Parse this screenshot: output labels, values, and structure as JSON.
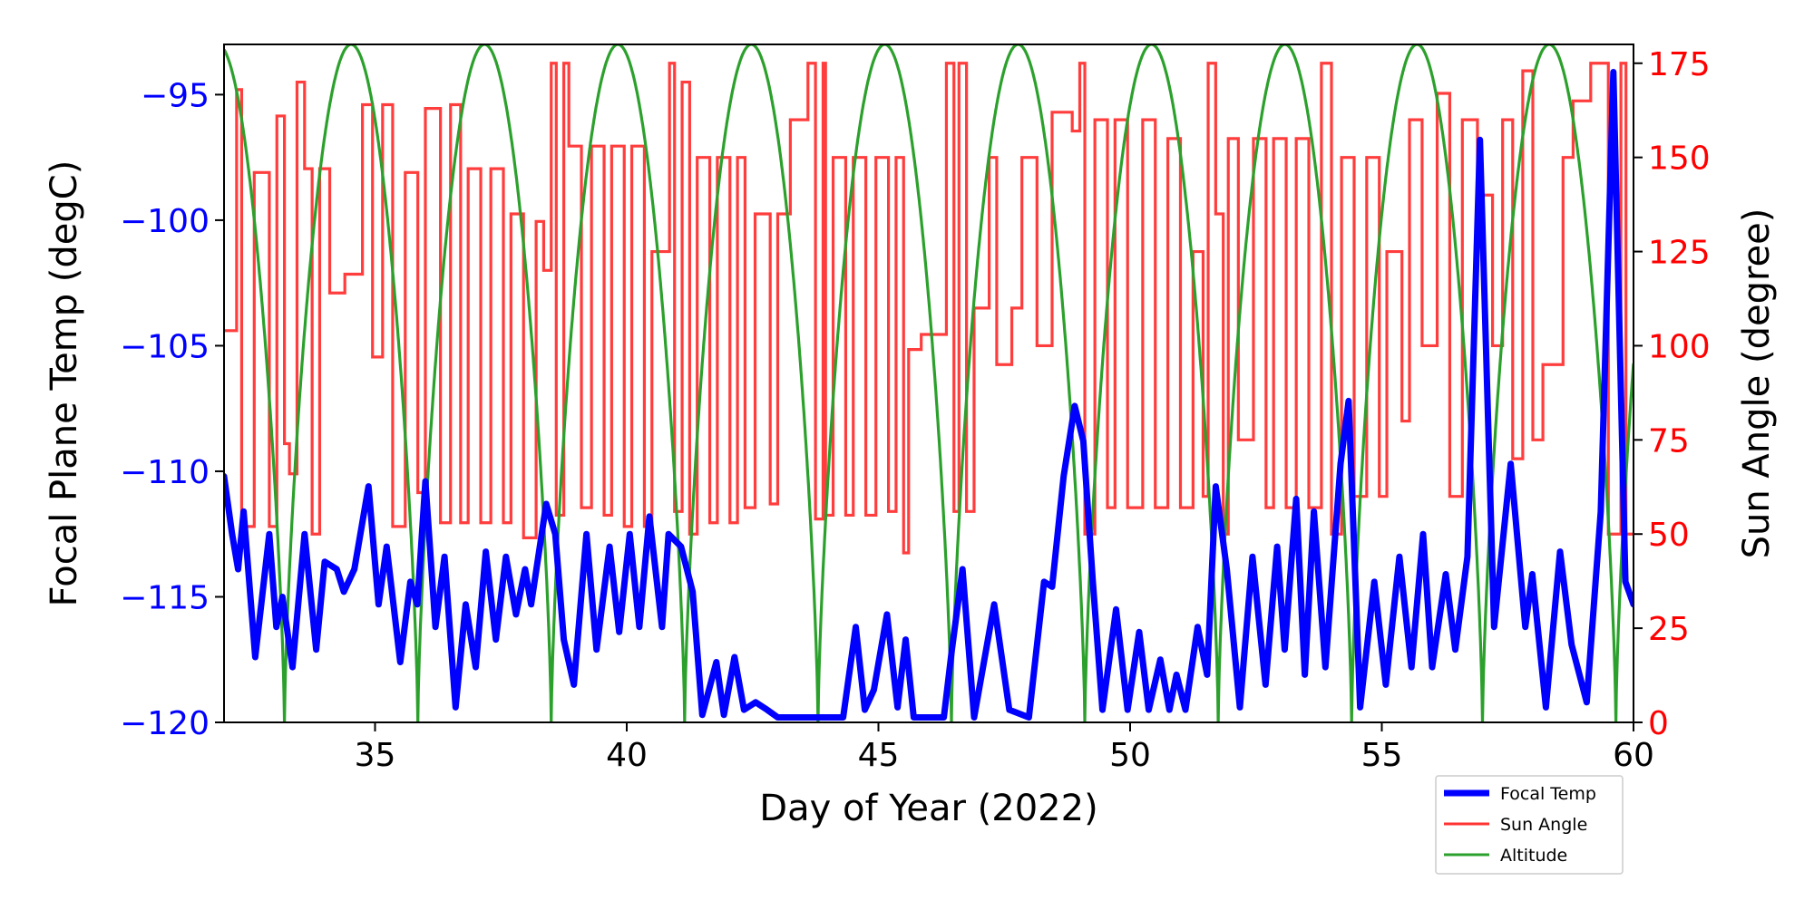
{
  "chart_data": {
    "type": "line",
    "xlabel": "Day of Year (2022)",
    "ylabel_left": "Focal Plane Temp (degC)",
    "ylabel_right": "Sun Angle (degree)",
    "xlim": [
      32,
      60
    ],
    "ylim_left": [
      -120,
      -93
    ],
    "ylim_right": [
      0,
      180
    ],
    "xticks": [
      35,
      40,
      45,
      50,
      55,
      60
    ],
    "yticks_left": [
      -95,
      -100,
      -105,
      -110,
      -115,
      -120
    ],
    "yticks_right": [
      175,
      150,
      125,
      100,
      75,
      50,
      25,
      0
    ],
    "legend_position": "below-right",
    "grid": false,
    "colors": {
      "focal": "#0000ff",
      "sun": "#ff3333",
      "altitude": "#2ca02c",
      "left_axis": "#0000ff",
      "right_axis": "#ff0000"
    },
    "legend": [
      "Focal Temp",
      "Sun Angle",
      "Altitude"
    ],
    "series": [
      {
        "name": "Focal Temp",
        "axis": "left",
        "points": [
          [
            32.0,
            -110.2
          ],
          [
            32.16,
            -112.5
          ],
          [
            32.28,
            -113.9
          ],
          [
            32.39,
            -111.6
          ],
          [
            32.62,
            -117.4
          ],
          [
            32.9,
            -112.5
          ],
          [
            33.04,
            -116.2
          ],
          [
            33.16,
            -115
          ],
          [
            33.36,
            -117.8
          ],
          [
            33.6,
            -112.5
          ],
          [
            33.83,
            -117.1
          ],
          [
            34.0,
            -113.6
          ],
          [
            34.24,
            -113.9
          ],
          [
            34.38,
            -114.8
          ],
          [
            34.59,
            -113.9
          ],
          [
            34.87,
            -110.6
          ],
          [
            35.07,
            -115.3
          ],
          [
            35.23,
            -113
          ],
          [
            35.5,
            -117.6
          ],
          [
            35.7,
            -114.4
          ],
          [
            35.84,
            -115.3
          ],
          [
            36.0,
            -110.4
          ],
          [
            36.2,
            -116.2
          ],
          [
            36.38,
            -113.4
          ],
          [
            36.6,
            -119.4
          ],
          [
            36.8,
            -115.3
          ],
          [
            37.0,
            -117.8
          ],
          [
            37.2,
            -113.2
          ],
          [
            37.4,
            -116.7
          ],
          [
            37.6,
            -113.4
          ],
          [
            37.8,
            -115.7
          ],
          [
            37.98,
            -113.9
          ],
          [
            38.1,
            -115.3
          ],
          [
            38.4,
            -111.3
          ],
          [
            38.58,
            -112.5
          ],
          [
            38.75,
            -116.7
          ],
          [
            38.95,
            -118.5
          ],
          [
            39.2,
            -112.5
          ],
          [
            39.4,
            -117.1
          ],
          [
            39.66,
            -113
          ],
          [
            39.85,
            -116.4
          ],
          [
            40.06,
            -112.5
          ],
          [
            40.25,
            -116.2
          ],
          [
            40.45,
            -111.8
          ],
          [
            40.7,
            -116.2
          ],
          [
            40.83,
            -112.5
          ],
          [
            41.08,
            -113
          ],
          [
            41.31,
            -114.8
          ],
          [
            41.5,
            -119.7
          ],
          [
            41.78,
            -117.6
          ],
          [
            41.93,
            -119.7
          ],
          [
            42.14,
            -117.4
          ],
          [
            42.33,
            -119.5
          ],
          [
            42.56,
            -119.2
          ],
          [
            42.79,
            -119.5
          ],
          [
            43.0,
            -119.8
          ],
          [
            44.3,
            -119.8
          ],
          [
            44.55,
            -116.2
          ],
          [
            44.73,
            -119.5
          ],
          [
            44.91,
            -118.7
          ],
          [
            45.17,
            -115.7
          ],
          [
            45.38,
            -119.4
          ],
          [
            45.54,
            -116.7
          ],
          [
            45.7,
            -119.8
          ],
          [
            46.3,
            -119.8
          ],
          [
            46.46,
            -117.1
          ],
          [
            46.67,
            -113.9
          ],
          [
            46.9,
            -119.8
          ],
          [
            47.3,
            -115.3
          ],
          [
            47.6,
            -119.5
          ],
          [
            47.99,
            -119.8
          ],
          [
            48.29,
            -114.4
          ],
          [
            48.45,
            -114.6
          ],
          [
            48.68,
            -110.2
          ],
          [
            48.9,
            -107.4
          ],
          [
            49.07,
            -108.8
          ],
          [
            49.26,
            -114.4
          ],
          [
            49.45,
            -119.5
          ],
          [
            49.72,
            -115.5
          ],
          [
            49.95,
            -119.5
          ],
          [
            50.18,
            -116.4
          ],
          [
            50.37,
            -119.5
          ],
          [
            50.6,
            -117.5
          ],
          [
            50.78,
            -119.5
          ],
          [
            50.92,
            -118.1
          ],
          [
            51.1,
            -119.5
          ],
          [
            51.34,
            -116.2
          ],
          [
            51.53,
            -118.1
          ],
          [
            51.7,
            -110.6
          ],
          [
            51.92,
            -113.9
          ],
          [
            52.18,
            -119.4
          ],
          [
            52.43,
            -113.4
          ],
          [
            52.69,
            -118.5
          ],
          [
            52.92,
            -113
          ],
          [
            53.07,
            -117.1
          ],
          [
            53.3,
            -111.1
          ],
          [
            53.47,
            -118.1
          ],
          [
            53.65,
            -111.6
          ],
          [
            53.88,
            -117.8
          ],
          [
            54.18,
            -109.7
          ],
          [
            54.34,
            -107.2
          ],
          [
            54.57,
            -119.4
          ],
          [
            54.85,
            -114.4
          ],
          [
            55.08,
            -118.5
          ],
          [
            55.35,
            -113.4
          ],
          [
            55.59,
            -117.8
          ],
          [
            55.82,
            -112.5
          ],
          [
            56.0,
            -117.8
          ],
          [
            56.27,
            -114.1
          ],
          [
            56.46,
            -117.1
          ],
          [
            56.7,
            -113.4
          ],
          [
            56.95,
            -96.8
          ],
          [
            57.23,
            -116.2
          ],
          [
            57.56,
            -109.7
          ],
          [
            57.85,
            -116.2
          ],
          [
            57.99,
            -114.1
          ],
          [
            58.26,
            -119.4
          ],
          [
            58.54,
            -113.2
          ],
          [
            58.77,
            -116.9
          ],
          [
            59.07,
            -119.2
          ],
          [
            59.35,
            -111.6
          ],
          [
            59.6,
            -94.1
          ],
          [
            59.84,
            -114.4
          ],
          [
            60.0,
            -115.3
          ]
        ]
      },
      {
        "name": "Sun Angle",
        "axis": "right",
        "step": true,
        "points": [
          [
            32.0,
            104
          ],
          [
            32.25,
            168
          ],
          [
            32.35,
            52
          ],
          [
            32.6,
            146
          ],
          [
            32.9,
            52
          ],
          [
            33.05,
            161
          ],
          [
            33.2,
            74
          ],
          [
            33.3,
            66
          ],
          [
            33.45,
            170
          ],
          [
            33.6,
            147
          ],
          [
            33.75,
            50
          ],
          [
            33.9,
            147
          ],
          [
            34.1,
            114
          ],
          [
            34.4,
            119
          ],
          [
            34.75,
            164
          ],
          [
            34.95,
            97
          ],
          [
            35.15,
            164
          ],
          [
            35.35,
            52
          ],
          [
            35.6,
            146
          ],
          [
            35.85,
            61
          ],
          [
            36.0,
            163
          ],
          [
            36.3,
            53
          ],
          [
            36.5,
            164
          ],
          [
            36.7,
            53
          ],
          [
            36.85,
            147
          ],
          [
            37.1,
            53
          ],
          [
            37.3,
            147
          ],
          [
            37.55,
            53
          ],
          [
            37.7,
            135
          ],
          [
            37.95,
            49
          ],
          [
            38.2,
            133
          ],
          [
            38.35,
            120
          ],
          [
            38.5,
            175
          ],
          [
            38.6,
            55
          ],
          [
            38.75,
            175
          ],
          [
            38.85,
            153
          ],
          [
            39.1,
            57
          ],
          [
            39.3,
            153
          ],
          [
            39.55,
            55
          ],
          [
            39.7,
            153
          ],
          [
            39.95,
            52
          ],
          [
            40.1,
            153
          ],
          [
            40.35,
            52
          ],
          [
            40.5,
            125
          ],
          [
            40.85,
            175
          ],
          [
            40.95,
            56
          ],
          [
            41.1,
            170
          ],
          [
            41.25,
            50
          ],
          [
            41.4,
            150
          ],
          [
            41.65,
            53
          ],
          [
            41.8,
            150
          ],
          [
            42.05,
            53
          ],
          [
            42.2,
            150
          ],
          [
            42.35,
            57
          ],
          [
            42.55,
            135
          ],
          [
            42.85,
            58
          ],
          [
            43.0,
            135
          ],
          [
            43.25,
            160
          ],
          [
            43.6,
            175
          ],
          [
            43.75,
            54
          ],
          [
            43.9,
            175
          ],
          [
            43.95,
            55
          ],
          [
            44.1,
            150
          ],
          [
            44.35,
            55
          ],
          [
            44.5,
            150
          ],
          [
            44.75,
            55
          ],
          [
            44.95,
            150
          ],
          [
            45.2,
            56
          ],
          [
            45.35,
            150
          ],
          [
            45.5,
            45
          ],
          [
            45.6,
            99
          ],
          [
            45.85,
            103
          ],
          [
            46.35,
            175
          ],
          [
            46.5,
            56
          ],
          [
            46.6,
            175
          ],
          [
            46.75,
            56
          ],
          [
            46.9,
            110
          ],
          [
            47.2,
            150
          ],
          [
            47.35,
            95
          ],
          [
            47.65,
            110
          ],
          [
            47.85,
            150
          ],
          [
            48.15,
            100
          ],
          [
            48.45,
            162
          ],
          [
            48.85,
            157
          ],
          [
            49.0,
            175
          ],
          [
            49.1,
            50
          ],
          [
            49.3,
            160
          ],
          [
            49.55,
            57
          ],
          [
            49.7,
            160
          ],
          [
            49.95,
            57
          ],
          [
            50.25,
            160
          ],
          [
            50.5,
            57
          ],
          [
            50.75,
            155
          ],
          [
            51.0,
            57
          ],
          [
            51.25,
            125
          ],
          [
            51.45,
            60
          ],
          [
            51.55,
            175
          ],
          [
            51.7,
            135
          ],
          [
            51.85,
            50
          ],
          [
            51.95,
            155
          ],
          [
            52.15,
            75
          ],
          [
            52.45,
            155
          ],
          [
            52.7,
            57
          ],
          [
            52.85,
            155
          ],
          [
            53.1,
            57
          ],
          [
            53.3,
            155
          ],
          [
            53.55,
            57
          ],
          [
            53.8,
            175
          ],
          [
            54.0,
            50
          ],
          [
            54.2,
            150
          ],
          [
            54.45,
            60
          ],
          [
            54.7,
            150
          ],
          [
            54.95,
            60
          ],
          [
            55.1,
            125
          ],
          [
            55.4,
            80
          ],
          [
            55.55,
            160
          ],
          [
            55.8,
            100
          ],
          [
            56.1,
            167
          ],
          [
            56.35,
            60
          ],
          [
            56.6,
            160
          ],
          [
            56.9,
            140
          ],
          [
            57.2,
            100
          ],
          [
            57.4,
            160
          ],
          [
            57.6,
            70
          ],
          [
            57.8,
            173
          ],
          [
            58.0,
            75
          ],
          [
            58.2,
            95
          ],
          [
            58.6,
            150
          ],
          [
            58.8,
            165
          ],
          [
            59.15,
            175
          ],
          [
            59.5,
            50
          ],
          [
            59.75,
            175
          ],
          [
            59.85,
            50
          ]
        ]
      },
      {
        "name": "Altitude",
        "axis": "hidden",
        "normalized": true,
        "perigee_days": [
          30.55,
          33.2,
          35.85,
          38.5,
          41.15,
          43.8,
          46.45,
          49.1,
          51.75,
          54.4,
          57.0,
          59.65,
          62.3
        ],
        "shape_exponent": 0.7
      }
    ]
  }
}
